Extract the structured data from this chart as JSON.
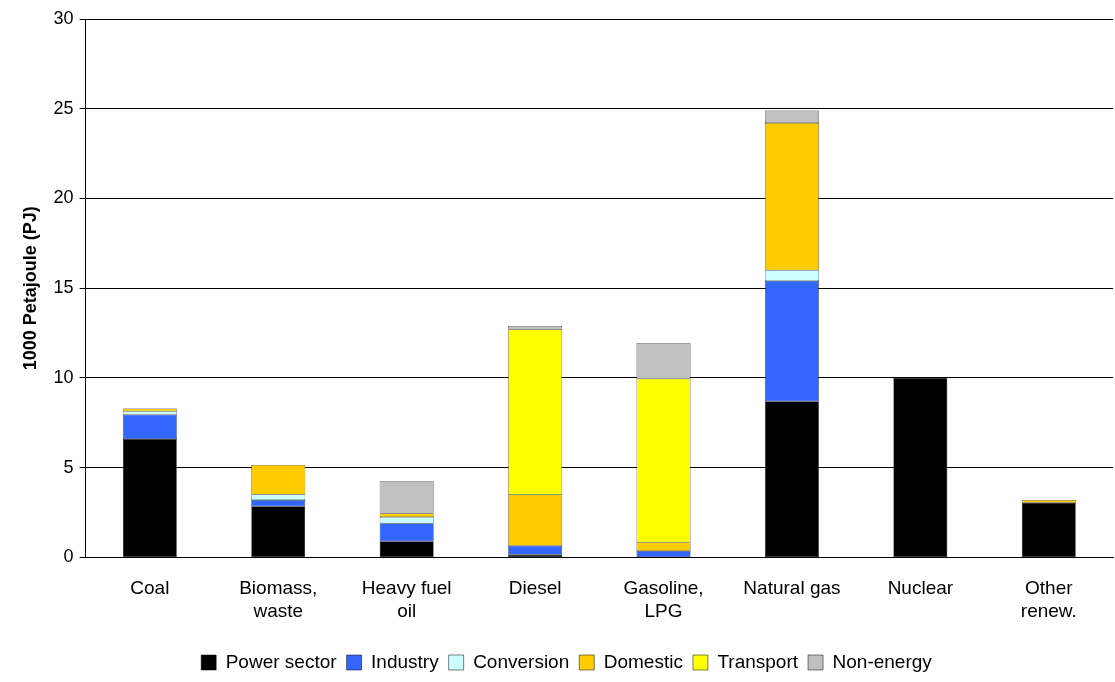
{
  "chart_data": {
    "type": "bar",
    "stacked": true,
    "ylabel": "1000 Petajoule (PJ)",
    "categories": [
      "Coal",
      "Biomass,\nwaste",
      "Heavy fuel\noil",
      "Diesel",
      "Gasoline,\nLPG",
      "Natural gas",
      "Nuclear",
      "Other\nrenew."
    ],
    "series": [
      {
        "name": "Power sector",
        "color": "#000000",
        "values": [
          6.6,
          2.85,
          0.9,
          0.15,
          null,
          8.7,
          10.0,
          3.05
        ]
      },
      {
        "name": "Industry",
        "color": "#3366ff",
        "values": [
          1.35,
          0.35,
          1.0,
          0.5,
          0.35,
          6.7,
          null,
          null
        ]
      },
      {
        "name": "Conversion",
        "color": "#ccffff",
        "values": [
          0.2,
          0.3,
          0.35,
          null,
          null,
          0.6,
          null,
          null
        ]
      },
      {
        "name": "Domestic",
        "color": "#ffcc00",
        "values": [
          0.15,
          1.65,
          0.2,
          2.85,
          0.5,
          8.2,
          null,
          0.15
        ]
      },
      {
        "name": "Transport",
        "color": "#ffff00",
        "values": [
          null,
          null,
          null,
          9.2,
          9.1,
          null,
          null,
          null
        ]
      },
      {
        "name": "Non-energy",
        "color": "#c0c0c0",
        "values": [
          null,
          null,
          1.8,
          0.2,
          2.0,
          0.7,
          null,
          null
        ]
      }
    ],
    "ylim": [
      0,
      30
    ],
    "yticks": [
      0,
      5,
      10,
      15,
      20,
      25,
      30
    ],
    "grid": "y",
    "legend": "bottom"
  }
}
